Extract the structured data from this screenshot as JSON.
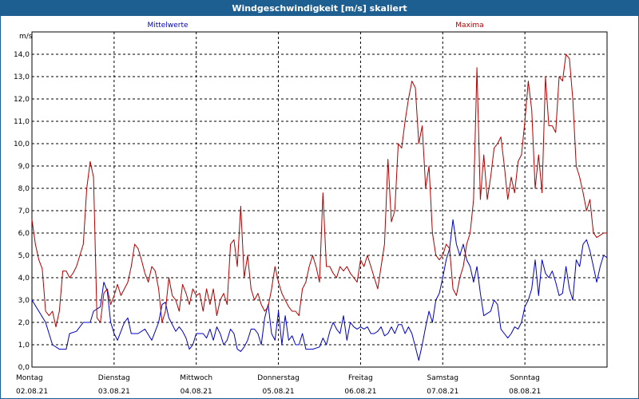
{
  "window": {
    "title": "Windgeschwindigkeit [m/s] skaliert"
  },
  "colors": {
    "mittel": "#0000c0",
    "maxima": "#b00000",
    "grid": "#000000",
    "titlebar": "#1e5f91"
  },
  "chart_data": {
    "type": "line",
    "title": "Windgeschwindigkeit [m/s] skaliert",
    "ylabel": "m/s",
    "ylim": [
      0,
      15
    ],
    "yticks": [
      "0,0",
      "1,0",
      "2,0",
      "3,0",
      "4,0",
      "5,0",
      "6,0",
      "7,0",
      "8,0",
      "9,0",
      "10,0",
      "11,0",
      "12,0",
      "13,0",
      "14,0"
    ],
    "grid": true,
    "x_unit": "hours since 02.08.21 00:00",
    "xlim": [
      0,
      168
    ],
    "x_day_labels": [
      {
        "day": "Montag",
        "date": "02.08.21"
      },
      {
        "day": "Dienstag",
        "date": "03.08.21"
      },
      {
        "day": "Mittwoch",
        "date": "04.08.21"
      },
      {
        "day": "Donnerstag",
        "date": "05.08.21"
      },
      {
        "day": "Freitag",
        "date": "06.08.21"
      },
      {
        "day": "Samstag",
        "date": "07.08.21"
      },
      {
        "day": "Sonntag",
        "date": "08.08.21"
      }
    ],
    "series": [
      {
        "name": "Mittelwerte",
        "color": "#0000c0",
        "points": [
          [
            0,
            3.0
          ],
          [
            2,
            2.5
          ],
          [
            4,
            2.0
          ],
          [
            6,
            1.0
          ],
          [
            8,
            0.8
          ],
          [
            10,
            0.8
          ],
          [
            11,
            1.5
          ],
          [
            13,
            1.6
          ],
          [
            15,
            2.0
          ],
          [
            17,
            2.0
          ],
          [
            18,
            2.5
          ],
          [
            20,
            2.7
          ],
          [
            21,
            3.8
          ],
          [
            22,
            3.4
          ],
          [
            23,
            2.0
          ],
          [
            24,
            1.5
          ],
          [
            25,
            1.2
          ],
          [
            26,
            1.6
          ],
          [
            27,
            2.0
          ],
          [
            28,
            2.2
          ],
          [
            29,
            1.5
          ],
          [
            31,
            1.5
          ],
          [
            33,
            1.7
          ],
          [
            35,
            1.2
          ],
          [
            37,
            2.0
          ],
          [
            38,
            2.8
          ],
          [
            39,
            2.9
          ],
          [
            40,
            2.2
          ],
          [
            42,
            1.6
          ],
          [
            43,
            1.8
          ],
          [
            44,
            1.6
          ],
          [
            45,
            1.3
          ],
          [
            46,
            0.8
          ],
          [
            47,
            1.0
          ],
          [
            48,
            1.5
          ],
          [
            50,
            1.5
          ],
          [
            51,
            1.3
          ],
          [
            52,
            1.7
          ],
          [
            53,
            1.2
          ],
          [
            54,
            1.8
          ],
          [
            55,
            1.5
          ],
          [
            56,
            1.0
          ],
          [
            57,
            1.2
          ],
          [
            58,
            1.7
          ],
          [
            59,
            1.5
          ],
          [
            60,
            0.8
          ],
          [
            61,
            0.7
          ],
          [
            62,
            0.9
          ],
          [
            63,
            1.2
          ],
          [
            64,
            1.7
          ],
          [
            65,
            1.7
          ],
          [
            66,
            1.5
          ],
          [
            67,
            1.0
          ],
          [
            68,
            2.2
          ],
          [
            69,
            2.8
          ],
          [
            70,
            1.5
          ],
          [
            71,
            1.2
          ],
          [
            72,
            2.5
          ],
          [
            73,
            1.0
          ],
          [
            74,
            2.3
          ],
          [
            75,
            1.2
          ],
          [
            76,
            1.4
          ],
          [
            77,
            1.0
          ],
          [
            78,
            1.0
          ],
          [
            79,
            1.5
          ],
          [
            80,
            0.8
          ],
          [
            82,
            0.8
          ],
          [
            84,
            0.9
          ],
          [
            85,
            1.3
          ],
          [
            86,
            1.0
          ],
          [
            87,
            1.6
          ],
          [
            88,
            2.0
          ],
          [
            89,
            1.7
          ],
          [
            90,
            1.5
          ],
          [
            91,
            2.3
          ],
          [
            92,
            1.2
          ],
          [
            93,
            2.0
          ],
          [
            94,
            1.8
          ],
          [
            95,
            1.7
          ],
          [
            96,
            1.8
          ],
          [
            97,
            1.7
          ],
          [
            98,
            1.8
          ],
          [
            99,
            1.5
          ],
          [
            100,
            1.5
          ],
          [
            101,
            1.6
          ],
          [
            102,
            1.8
          ],
          [
            103,
            1.4
          ],
          [
            104,
            1.5
          ],
          [
            105,
            1.8
          ],
          [
            106,
            1.5
          ],
          [
            107,
            1.9
          ],
          [
            108,
            1.9
          ],
          [
            109,
            1.5
          ],
          [
            110,
            1.8
          ],
          [
            111,
            1.5
          ],
          [
            112,
            0.9
          ],
          [
            113,
            0.3
          ],
          [
            114,
            1.0
          ],
          [
            115,
            1.8
          ],
          [
            116,
            2.5
          ],
          [
            117,
            2.0
          ],
          [
            118,
            3.0
          ],
          [
            119,
            3.3
          ],
          [
            120,
            4.0
          ],
          [
            121,
            4.8
          ],
          [
            122,
            5.3
          ],
          [
            123,
            6.6
          ],
          [
            124,
            5.5
          ],
          [
            125,
            5.0
          ],
          [
            126,
            5.5
          ],
          [
            127,
            4.8
          ],
          [
            128,
            4.5
          ],
          [
            129,
            3.8
          ],
          [
            130,
            4.5
          ],
          [
            131,
            3.3
          ],
          [
            132,
            2.3
          ],
          [
            133,
            2.4
          ],
          [
            134,
            2.5
          ],
          [
            135,
            3.0
          ],
          [
            136,
            2.8
          ],
          [
            137,
            1.7
          ],
          [
            138,
            1.5
          ],
          [
            139,
            1.3
          ],
          [
            140,
            1.5
          ],
          [
            141,
            1.8
          ],
          [
            142,
            1.7
          ],
          [
            143,
            2.0
          ],
          [
            144,
            2.7
          ],
          [
            145,
            3.0
          ],
          [
            146,
            3.5
          ],
          [
            147,
            4.8
          ],
          [
            148,
            3.2
          ],
          [
            149,
            4.8
          ],
          [
            150,
            4.2
          ],
          [
            151,
            4.0
          ],
          [
            152,
            4.3
          ],
          [
            153,
            3.8
          ],
          [
            154,
            3.2
          ],
          [
            155,
            3.3
          ],
          [
            156,
            4.5
          ],
          [
            157,
            3.5
          ],
          [
            158,
            3.0
          ],
          [
            159,
            4.8
          ],
          [
            160,
            4.5
          ],
          [
            161,
            5.5
          ],
          [
            162,
            5.7
          ],
          [
            163,
            5.2
          ],
          [
            164,
            4.5
          ],
          [
            165,
            3.8
          ],
          [
            166,
            4.5
          ],
          [
            167,
            5.0
          ],
          [
            168,
            4.9
          ]
        ]
      },
      {
        "name": "Maxima",
        "color": "#b00000",
        "points": [
          [
            0,
            6.6
          ],
          [
            1,
            5.5
          ],
          [
            2,
            4.8
          ],
          [
            3,
            4.4
          ],
          [
            4,
            2.5
          ],
          [
            5,
            2.3
          ],
          [
            6,
            2.5
          ],
          [
            7,
            1.8
          ],
          [
            8,
            2.5
          ],
          [
            9,
            4.3
          ],
          [
            10,
            4.3
          ],
          [
            11,
            4.0
          ],
          [
            12,
            4.2
          ],
          [
            13,
            4.5
          ],
          [
            14,
            5.0
          ],
          [
            15,
            5.5
          ],
          [
            16,
            8.0
          ],
          [
            17,
            9.2
          ],
          [
            18,
            8.5
          ],
          [
            19,
            2.2
          ],
          [
            20,
            2.0
          ],
          [
            21,
            3.3
          ],
          [
            22,
            3.5
          ],
          [
            23,
            2.8
          ],
          [
            24,
            3.2
          ],
          [
            25,
            3.7
          ],
          [
            26,
            3.2
          ],
          [
            27,
            3.5
          ],
          [
            28,
            3.8
          ],
          [
            29,
            4.5
          ],
          [
            30,
            5.5
          ],
          [
            31,
            5.3
          ],
          [
            32,
            4.8
          ],
          [
            33,
            4.2
          ],
          [
            34,
            3.8
          ],
          [
            35,
            4.5
          ],
          [
            36,
            4.3
          ],
          [
            37,
            3.5
          ],
          [
            38,
            2.0
          ],
          [
            39,
            2.5
          ],
          [
            40,
            4.0
          ],
          [
            41,
            3.2
          ],
          [
            42,
            3.0
          ],
          [
            43,
            2.5
          ],
          [
            44,
            3.7
          ],
          [
            45,
            3.3
          ],
          [
            46,
            2.8
          ],
          [
            47,
            3.5
          ],
          [
            48,
            3.2
          ],
          [
            49,
            3.3
          ],
          [
            50,
            2.5
          ],
          [
            51,
            3.5
          ],
          [
            52,
            2.8
          ],
          [
            53,
            3.5
          ],
          [
            54,
            2.3
          ],
          [
            55,
            3.0
          ],
          [
            56,
            3.3
          ],
          [
            57,
            2.8
          ],
          [
            58,
            5.5
          ],
          [
            59,
            5.7
          ],
          [
            60,
            4.5
          ],
          [
            61,
            7.2
          ],
          [
            62,
            4.0
          ],
          [
            63,
            5.0
          ],
          [
            64,
            3.5
          ],
          [
            65,
            3.0
          ],
          [
            66,
            3.3
          ],
          [
            67,
            2.8
          ],
          [
            68,
            2.5
          ],
          [
            69,
            2.7
          ],
          [
            70,
            3.5
          ],
          [
            71,
            4.5
          ],
          [
            72,
            3.8
          ],
          [
            73,
            3.3
          ],
          [
            74,
            3.0
          ],
          [
            75,
            2.7
          ],
          [
            76,
            2.5
          ],
          [
            77,
            2.5
          ],
          [
            78,
            2.3
          ],
          [
            79,
            3.5
          ],
          [
            80,
            3.8
          ],
          [
            81,
            4.5
          ],
          [
            82,
            5.0
          ],
          [
            83,
            4.5
          ],
          [
            84,
            3.8
          ],
          [
            85,
            7.8
          ],
          [
            86,
            4.5
          ],
          [
            87,
            4.5
          ],
          [
            88,
            4.2
          ],
          [
            89,
            4.0
          ],
          [
            90,
            4.5
          ],
          [
            91,
            4.3
          ],
          [
            92,
            4.5
          ],
          [
            93,
            4.2
          ],
          [
            94,
            4.0
          ],
          [
            95,
            3.8
          ],
          [
            96,
            4.8
          ],
          [
            97,
            4.5
          ],
          [
            98,
            5.0
          ],
          [
            99,
            4.5
          ],
          [
            100,
            4.0
          ],
          [
            101,
            3.5
          ],
          [
            102,
            4.5
          ],
          [
            103,
            5.5
          ],
          [
            104,
            9.3
          ],
          [
            105,
            6.5
          ],
          [
            106,
            7.0
          ],
          [
            107,
            10.0
          ],
          [
            108,
            9.8
          ],
          [
            109,
            11.0
          ],
          [
            110,
            12.0
          ],
          [
            111,
            12.8
          ],
          [
            112,
            12.5
          ],
          [
            113,
            10.0
          ],
          [
            114,
            10.8
          ],
          [
            115,
            8.0
          ],
          [
            116,
            9.0
          ],
          [
            117,
            6.0
          ],
          [
            118,
            5.0
          ],
          [
            119,
            4.8
          ],
          [
            120,
            5.0
          ],
          [
            121,
            5.5
          ],
          [
            122,
            5.3
          ],
          [
            123,
            3.5
          ],
          [
            124,
            3.2
          ],
          [
            125,
            4.0
          ],
          [
            126,
            4.5
          ],
          [
            127,
            5.5
          ],
          [
            128,
            6.0
          ],
          [
            129,
            7.5
          ],
          [
            130,
            13.4
          ],
          [
            131,
            7.5
          ],
          [
            132,
            9.5
          ],
          [
            133,
            7.5
          ],
          [
            134,
            8.5
          ],
          [
            135,
            9.8
          ],
          [
            136,
            10.0
          ],
          [
            137,
            10.3
          ],
          [
            138,
            9.0
          ],
          [
            139,
            7.5
          ],
          [
            140,
            8.5
          ],
          [
            141,
            7.8
          ],
          [
            142,
            9.2
          ],
          [
            143,
            9.5
          ],
          [
            144,
            11.0
          ],
          [
            145,
            12.8
          ],
          [
            146,
            11.5
          ],
          [
            147,
            8.0
          ],
          [
            148,
            9.5
          ],
          [
            149,
            7.8
          ],
          [
            150,
            13.0
          ],
          [
            151,
            10.8
          ],
          [
            152,
            10.8
          ],
          [
            153,
            10.5
          ],
          [
            154,
            13.0
          ],
          [
            155,
            12.8
          ],
          [
            156,
            14.0
          ],
          [
            157,
            13.8
          ],
          [
            158,
            12.0
          ],
          [
            159,
            9.0
          ],
          [
            160,
            8.5
          ],
          [
            161,
            7.8
          ],
          [
            162,
            7.0
          ],
          [
            163,
            7.5
          ],
          [
            164,
            6.0
          ],
          [
            165,
            5.8
          ],
          [
            166,
            5.9
          ],
          [
            167,
            6.0
          ],
          [
            168,
            6.0
          ]
        ]
      }
    ]
  }
}
